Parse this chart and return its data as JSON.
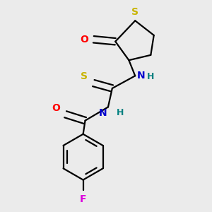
{
  "background_color": "#ebebeb",
  "atom_colors": {
    "S": "#c8b400",
    "O": "#ff0000",
    "N": "#0000cd",
    "F": "#dd00dd",
    "C": "#000000",
    "H": "#008080"
  },
  "figsize": [
    3.0,
    3.0
  ],
  "dpi": 100,
  "lw": 1.6,
  "fs": 10
}
